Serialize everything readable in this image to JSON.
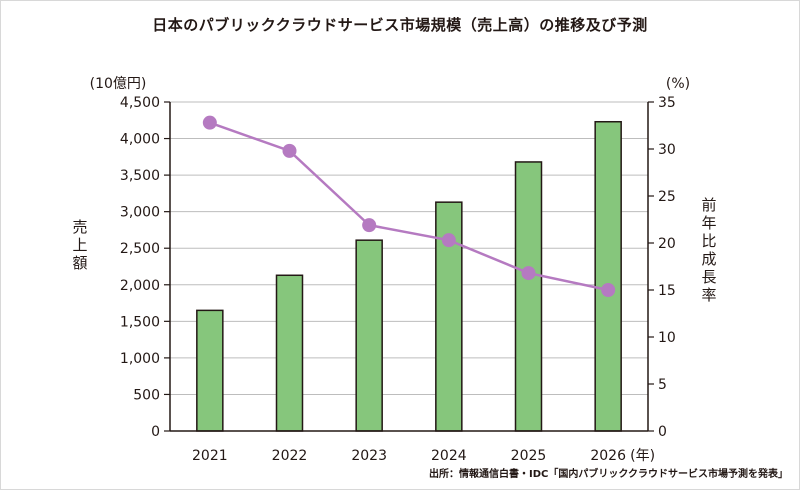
{
  "title": "日本のパブリッククラウドサービス市場規模（売上高）の推移及び予測",
  "source": "出所：情報通信白書・IDC「国内パブリッククラウドサービス市場予測を発表」",
  "chart_data": {
    "type": "bar",
    "categories": [
      "2021",
      "2022",
      "2023",
      "2024",
      "2025",
      "2026"
    ],
    "x_unit": "(年)",
    "series": [
      {
        "type": "bar",
        "axis": "left",
        "values": [
          1650,
          2130,
          2610,
          3130,
          3680,
          4230
        ],
        "color": "#86c67c"
      },
      {
        "type": "line",
        "axis": "right",
        "values": [
          32.8,
          29.8,
          21.9,
          20.3,
          16.8,
          15.0
        ],
        "color": "#b57ac1"
      }
    ],
    "y_left": {
      "label": "売上額",
      "unit": "(10億円)",
      "range": [
        0,
        4500
      ],
      "step": 500,
      "tick_labels": [
        "0",
        "500",
        "1,000",
        "1,500",
        "2,000",
        "2,500",
        "3,000",
        "3,500",
        "4,000",
        "4,500"
      ]
    },
    "y_right": {
      "label": "前年比成長率",
      "unit": "(%)",
      "range": [
        0,
        35
      ],
      "step": 5,
      "tick_labels": [
        "0",
        "5",
        "10",
        "15",
        "20",
        "25",
        "30",
        "35"
      ]
    },
    "grid": true
  }
}
